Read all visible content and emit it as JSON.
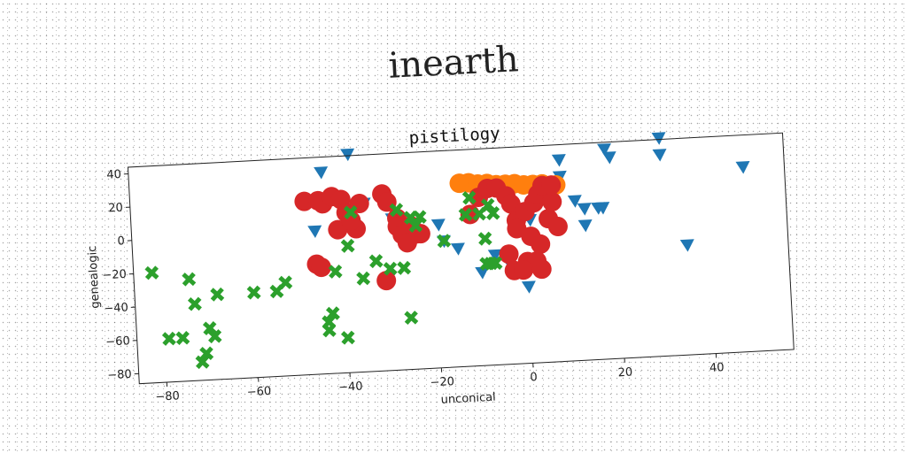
{
  "suptitle": "inearth",
  "chart_data": {
    "type": "scatter",
    "title": "pistilogy",
    "xlabel": "unconical",
    "ylabel": "genealogic",
    "xlim": [
      -86,
      57
    ],
    "ylim": [
      -86,
      44
    ],
    "xticks": [
      -80,
      -60,
      -40,
      -20,
      0,
      20,
      40
    ],
    "yticks": [
      -80,
      -60,
      -40,
      -20,
      0,
      20,
      40
    ],
    "grid": false,
    "legend": "none",
    "series": [
      {
        "marker": "triangle-down",
        "color": "#1f77b4",
        "x": [
          -44,
          -38,
          -35,
          -46,
          -29,
          -19,
          -18,
          -15,
          -10,
          -7,
          -4,
          -1,
          0,
          1,
          8,
          8,
          11,
          13,
          13,
          16,
          17,
          18,
          19,
          30,
          30,
          35,
          48
        ],
        "y": [
          35,
          45,
          15,
          0,
          5,
          0,
          -10,
          -15,
          -30,
          -20,
          -25,
          20,
          -40,
          0,
          35,
          25,
          10,
          -5,
          5,
          5,
          5,
          40,
          35,
          45,
          35,
          -20,
          25
        ]
      },
      {
        "marker": "circle",
        "color": "#ff7f0e",
        "x": [
          -14,
          -12,
          -10,
          -8,
          -6,
          -4,
          -2,
          0,
          2,
          4,
          6,
          7
        ],
        "y": [
          24,
          24,
          23,
          23,
          22,
          22,
          22,
          21,
          21,
          21,
          20,
          20
        ]
      },
      {
        "marker": "circle",
        "color": "#d62728",
        "x": [
          -48,
          -45,
          -44,
          -42,
          -40,
          -39,
          -41,
          -37,
          -38,
          -36,
          -46,
          -45,
          -31,
          -30,
          -28,
          -28,
          -27,
          -25,
          -24,
          -26,
          -23,
          -31,
          -12,
          -10,
          -8,
          -6,
          -4,
          -3,
          -2,
          0,
          2,
          3,
          4,
          -2,
          1,
          3,
          -4,
          0,
          2,
          -3,
          -1,
          3,
          5,
          6,
          6,
          7
        ],
        "y": [
          18,
          18,
          16,
          20,
          18,
          10,
          0,
          0,
          5,
          15,
          -20,
          -22,
          20,
          15,
          5,
          0,
          -5,
          0,
          -5,
          -10,
          -5,
          -32,
          5,
          15,
          20,
          20,
          15,
          10,
          0,
          5,
          10,
          15,
          20,
          -5,
          -10,
          -15,
          -20,
          -25,
          -25,
          -30,
          -30,
          -30,
          0,
          10,
          20,
          -5
        ]
      },
      {
        "marker": "x",
        "color": "#2ca02c",
        "x": [
          -82,
          -79,
          -76,
          -74,
          -73,
          -72,
          -71,
          -70,
          -69,
          -68,
          -60,
          -55,
          -53,
          -44,
          -44,
          -43,
          -42,
          -40,
          -39,
          -38,
          -36,
          -33,
          -30,
          -28,
          -27,
          -26,
          -25,
          -24,
          -23,
          -18,
          -13,
          -12,
          -10,
          -9,
          -8,
          -7,
          -9,
          -8,
          -7
        ],
        "y": [
          -20,
          -60,
          -60,
          -25,
          -40,
          -75,
          -70,
          -55,
          -60,
          -35,
          -35,
          -35,
          -30,
          -55,
          -60,
          -50,
          -25,
          -65,
          -10,
          10,
          -30,
          -20,
          -25,
          10,
          -25,
          -55,
          5,
          0,
          5,
          -10,
          5,
          15,
          5,
          -25,
          10,
          5,
          -10,
          -25,
          -25
        ]
      }
    ]
  }
}
